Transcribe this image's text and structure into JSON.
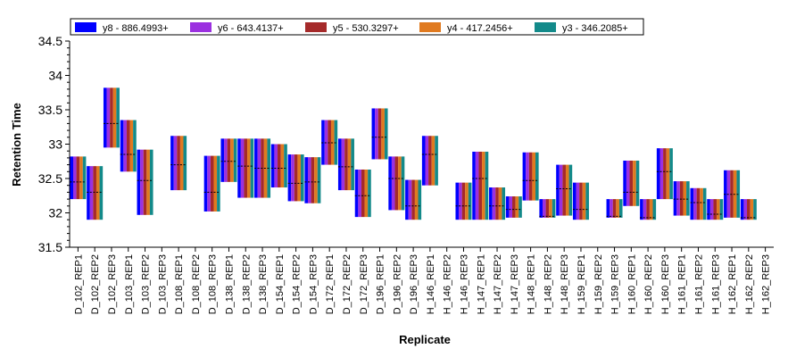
{
  "chart_data": {
    "type": "bar",
    "subtype": "floating-range",
    "xlabel": "Replicate",
    "ylabel": "Retention Time",
    "ylim": [
      31.5,
      34.5
    ],
    "yticks": [
      "31.5",
      "32",
      "32.5",
      "33",
      "33.5",
      "34",
      "34.5"
    ],
    "legend_position": "top",
    "grid": false,
    "series": [
      {
        "name": "y8 - 886.4993+",
        "color": "#0000ff"
      },
      {
        "name": "y6 - 643.4137+",
        "color": "#9b30e0"
      },
      {
        "name": "y5 - 530.3297+",
        "color": "#a52a2a"
      },
      {
        "name": "y4 - 417.2456+",
        "color": "#e07a20"
      },
      {
        "name": "y3 - 346.2085+",
        "color": "#138a8a"
      }
    ],
    "categories": [
      "D_102_REP1",
      "D_102_REP2",
      "D_102_REP3",
      "D_103_REP1",
      "D_103_REP2",
      "D_103_REP3",
      "D_108_REP1",
      "D_108_REP2",
      "D_108_REP3",
      "D_138_REP1",
      "D_138_REP2",
      "D_138_REP3",
      "D_154_REP1",
      "D_154_REP2",
      "D_154_REP3",
      "D_172_REP1",
      "D_172_REP2",
      "D_172_REP3",
      "D_196_REP1",
      "D_196_REP2",
      "D_196_REP3",
      "H_146_REP1",
      "H_146_REP2",
      "H_146_REP3",
      "H_147_REP1",
      "H_147_REP2",
      "H_147_REP3",
      "H_148_REP1",
      "H_148_REP2",
      "H_148_REP3",
      "H_159_REP1",
      "H_159_REP2",
      "H_159_REP3",
      "H_160_REP1",
      "H_160_REP2",
      "H_160_REP3",
      "H_161_REP1",
      "H_161_REP2",
      "H_161_REP3",
      "H_162_REP1",
      "H_162_REP2",
      "H_162_REP3"
    ],
    "ranges": [
      [
        32.2,
        32.82
      ],
      [
        31.9,
        32.68
      ],
      [
        32.95,
        33.82
      ],
      [
        32.6,
        33.35
      ],
      [
        31.97,
        32.92
      ],
      null,
      [
        32.33,
        33.12
      ],
      null,
      [
        32.02,
        32.83
      ],
      [
        32.45,
        33.08
      ],
      [
        32.22,
        33.08
      ],
      [
        32.22,
        33.08
      ],
      [
        32.37,
        33.0
      ],
      [
        32.17,
        32.85
      ],
      [
        32.14,
        32.81
      ],
      [
        32.7,
        33.35
      ],
      [
        32.33,
        33.08
      ],
      [
        31.94,
        32.63
      ],
      [
        32.78,
        33.52
      ],
      [
        32.04,
        32.82
      ],
      [
        31.9,
        32.48
      ],
      [
        32.4,
        33.12
      ],
      null,
      [
        31.9,
        32.44
      ],
      [
        31.9,
        32.89
      ],
      [
        31.9,
        32.37
      ],
      [
        31.93,
        32.24
      ],
      [
        32.18,
        32.88
      ],
      [
        31.93,
        32.2
      ],
      [
        31.96,
        32.7
      ],
      [
        31.9,
        32.44
      ],
      null,
      [
        31.93,
        32.2
      ],
      [
        32.1,
        32.76
      ],
      [
        31.9,
        32.2
      ],
      [
        32.2,
        32.94
      ],
      [
        31.96,
        32.46
      ],
      [
        31.9,
        32.36
      ],
      [
        31.9,
        32.2
      ],
      [
        31.93,
        32.62
      ],
      [
        31.9,
        32.2
      ],
      null
    ],
    "markers": [
      32.45,
      32.3,
      33.3,
      32.85,
      32.47,
      null,
      32.7,
      null,
      32.3,
      32.75,
      32.68,
      32.65,
      32.65,
      32.43,
      32.45,
      33.02,
      32.67,
      32.25,
      33.1,
      32.5,
      32.1,
      32.85,
      null,
      32.1,
      32.5,
      32.1,
      32.05,
      32.47,
      31.95,
      32.35,
      32.05,
      null,
      31.95,
      32.3,
      31.93,
      32.6,
      32.2,
      32.15,
      31.98,
      32.27,
      31.93,
      null
    ]
  }
}
